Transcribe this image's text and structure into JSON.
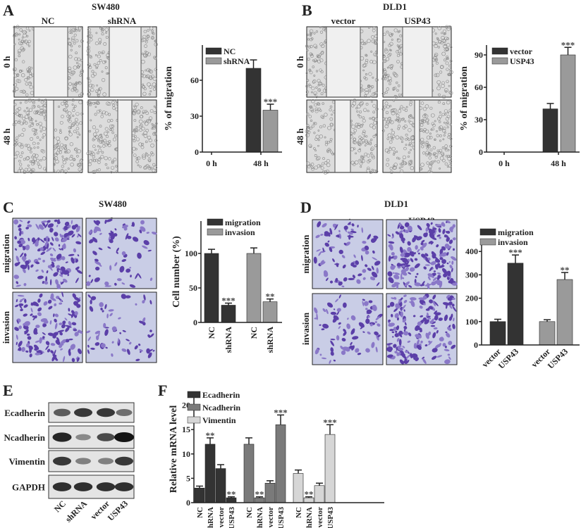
{
  "panels": {
    "A": {
      "letter": "A",
      "title": "SW480",
      "cols": [
        "NC",
        "shRNA"
      ],
      "rows": [
        "0 h",
        "48 h"
      ]
    },
    "B": {
      "letter": "B",
      "title": "DLD1",
      "cols": [
        "vector",
        "USP43"
      ],
      "rows": [
        "0 h",
        "48 h"
      ]
    },
    "C": {
      "letter": "C",
      "title": "SW480",
      "cols": [
        "NC",
        "shRNA"
      ],
      "rows": [
        "migration",
        "invasion"
      ]
    },
    "D": {
      "letter": "D",
      "title": "DLD1",
      "cols": [
        "vector",
        "USP43"
      ],
      "rows": [
        "migration",
        "invasion"
      ]
    },
    "E": {
      "letter": "E",
      "proteins": [
        "Ecadherin",
        "Ncadherin",
        "Vimentin",
        "GAPDH"
      ],
      "lanes": [
        "NC",
        "shRNA",
        "vector",
        "USP43"
      ],
      "band_intensity": [
        [
          0.6,
          0.8,
          0.8,
          0.5
        ],
        [
          0.9,
          0.35,
          0.7,
          1.0
        ],
        [
          0.8,
          0.4,
          0.4,
          0.8
        ],
        [
          0.85,
          0.85,
          0.85,
          0.85
        ]
      ]
    },
    "F": {
      "letter": "F"
    }
  },
  "chart_data": [
    {
      "id": "A",
      "type": "bar",
      "ylabel": "% of migration",
      "ylim": [
        0,
        90
      ],
      "yticks": [
        0,
        30,
        60
      ],
      "categories": [
        "0 h",
        "48 h"
      ],
      "series": [
        {
          "name": "NC",
          "color": "#333333",
          "values": [
            0,
            70
          ],
          "errors": [
            0,
            7
          ],
          "sig": [
            "",
            ""
          ]
        },
        {
          "name": "shRNA",
          "color": "#9a9a9a",
          "values": [
            0,
            35
          ],
          "errors": [
            0,
            5
          ],
          "sig": [
            "",
            "***"
          ]
        }
      ],
      "legend": "top-left"
    },
    {
      "id": "B",
      "type": "bar",
      "ylabel": "% of migration",
      "ylim": [
        0,
        100
      ],
      "yticks": [
        0,
        30,
        60,
        90
      ],
      "categories": [
        "0 h",
        "48 h"
      ],
      "series": [
        {
          "name": "vector",
          "color": "#333333",
          "values": [
            0,
            40
          ],
          "errors": [
            0,
            5
          ],
          "sig": [
            "",
            ""
          ]
        },
        {
          "name": "USP43",
          "color": "#9a9a9a",
          "values": [
            0,
            90
          ],
          "errors": [
            0,
            7
          ],
          "sig": [
            "",
            "***"
          ]
        }
      ],
      "legend": "top-left"
    },
    {
      "id": "C",
      "type": "bar",
      "ylabel": "Cell number (%)",
      "ylim": [
        0,
        145
      ],
      "yticks": [
        0,
        50,
        100
      ],
      "categories": [
        "NC",
        "shRNA",
        "NC",
        "shRNA"
      ],
      "series": [
        {
          "name": "migration",
          "color": "#333333",
          "values": [
            100,
            25,
            null,
            null
          ],
          "errors": [
            6,
            3,
            null,
            null
          ],
          "sig": [
            "",
            "***",
            "",
            ""
          ]
        },
        {
          "name": "invasion",
          "color": "#9a9a9a",
          "values": [
            null,
            null,
            100,
            30
          ],
          "errors": [
            null,
            null,
            8,
            4
          ],
          "sig": [
            "",
            "",
            "",
            "**"
          ]
        }
      ],
      "legend": "top-left"
    },
    {
      "id": "D",
      "type": "bar",
      "ylabel": "",
      "ylim": [
        0,
        440
      ],
      "yticks": [
        0,
        100,
        200,
        300,
        400
      ],
      "categories": [
        "vector",
        "USP43",
        "vector",
        "USP43"
      ],
      "series": [
        {
          "name": "migration",
          "color": "#333333",
          "values": [
            100,
            350,
            null,
            null
          ],
          "errors": [
            10,
            35,
            null,
            null
          ],
          "sig": [
            "",
            "***",
            "",
            ""
          ]
        },
        {
          "name": "invasion",
          "color": "#9a9a9a",
          "values": [
            null,
            null,
            100,
            280
          ],
          "errors": [
            null,
            null,
            8,
            30
          ],
          "sig": [
            "",
            "",
            "",
            "**"
          ]
        }
      ],
      "legend": "top-left"
    },
    {
      "id": "F",
      "type": "bar",
      "ylabel": "Relative mRNA level",
      "ylim": [
        0,
        21
      ],
      "yticks": [
        0,
        5,
        10,
        15,
        20
      ],
      "categories": [
        "NC",
        "shRNA",
        "vector",
        "USP43",
        "NC",
        "shRNA",
        "vector",
        "USP43",
        "NC",
        "shRNA",
        "vector",
        "USP43"
      ],
      "series": [
        {
          "name": "Ecadherin",
          "color": "#333333",
          "values": [
            3,
            12,
            7,
            1,
            null,
            null,
            null,
            null,
            null,
            null,
            null,
            null
          ],
          "errors": [
            0.4,
            1.3,
            0.8,
            0.2,
            null,
            null,
            null,
            null,
            null,
            null,
            null,
            null
          ],
          "sig": [
            "",
            "**",
            "",
            "**",
            "",
            "",
            "",
            "",
            "",
            "",
            "",
            ""
          ]
        },
        {
          "name": "Ncadherin",
          "color": "#7a7a7a",
          "values": [
            null,
            null,
            null,
            null,
            12,
            1,
            4,
            16,
            null,
            null,
            null,
            null
          ],
          "errors": [
            null,
            null,
            null,
            null,
            1.3,
            0.2,
            0.5,
            2,
            null,
            null,
            null,
            null
          ],
          "sig": [
            "",
            "",
            "",
            "",
            "",
            "**",
            "",
            "***",
            "",
            "",
            "",
            ""
          ]
        },
        {
          "name": "Vimentin",
          "color": "#d6d6d6",
          "values": [
            null,
            null,
            null,
            null,
            null,
            null,
            null,
            null,
            6,
            1,
            3.5,
            14
          ],
          "errors": [
            null,
            null,
            null,
            null,
            null,
            null,
            null,
            null,
            0.7,
            0.2,
            0.5,
            2
          ],
          "sig": [
            "",
            "",
            "",
            "",
            "",
            "",
            "",
            "",
            "",
            "**",
            "",
            "***"
          ]
        }
      ],
      "legend": "top-left"
    }
  ]
}
